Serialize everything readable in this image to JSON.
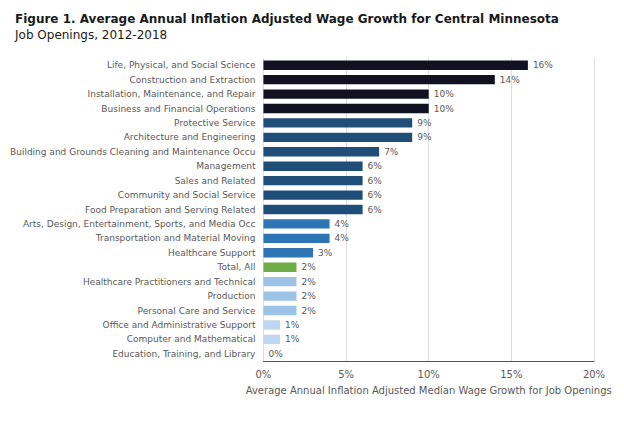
{
  "chart_data": {
    "type": "bar",
    "orientation": "horizontal",
    "title": "Figure 1. Average Annual Inflation Adjusted Wage Growth for Central Minnesota",
    "subtitle": "Job Openings, 2012-2018",
    "categories": [
      "Life, Physical, and Social Science",
      "Construction and Extraction",
      "Installation, Maintenance, and Repair",
      "Business and Financial Operations",
      "Protective Service",
      "Architecture and Engineering",
      "Building and Grounds Cleaning and Maintenance Occu",
      "Management",
      "Sales and Related",
      "Community and Social Service",
      "Food Preparation and Serving Related",
      "Arts, Design, Entertainment, Sports, and Media Occ",
      "Transportation and Material Moving",
      "Healthcare Support",
      "Total, All",
      "Healthcare Practitioners and Technical",
      "Production",
      "Personal Care and Service",
      "Office and Administrative Support",
      "Computer and Mathematical",
      "Education, Training, and Library"
    ],
    "values": [
      16,
      14,
      10,
      10,
      9,
      9,
      7,
      6,
      6,
      6,
      6,
      4,
      4,
      3,
      2,
      2,
      2,
      2,
      1,
      1,
      0
    ],
    "value_labels": [
      "16%",
      "14%",
      "10%",
      "10%",
      "9%",
      "9%",
      "7%",
      "6%",
      "6%",
      "6%",
      "6%",
      "4%",
      "4%",
      "3%",
      "2%",
      "2%",
      "2%",
      "2%",
      "1%",
      "1%",
      "0%"
    ],
    "data_labels": true,
    "colors": [
      "#111122",
      "#111122",
      "#111122",
      "#111122",
      "#1f4e79",
      "#1f4e79",
      "#1f4e79",
      "#1f4e79",
      "#1f4e79",
      "#1f4e79",
      "#1f4e79",
      "#2e75b6",
      "#2e75b6",
      "#2e75b6",
      "#70ad47",
      "#9dc3e6",
      "#9dc3e6",
      "#9dc3e6",
      "#bdd7ee",
      "#bdd7ee",
      "#bdd7ee"
    ],
    "xlabel": "Average Annual Inflation Adjusted Median Wage Growth for Job Openings",
    "xlim": [
      0,
      20
    ],
    "xticks": [
      {
        "value": 0,
        "label": "0%"
      },
      {
        "value": 5,
        "label": "5%"
      },
      {
        "value": 10,
        "label": "10%"
      },
      {
        "value": 15,
        "label": "15%"
      },
      {
        "value": 20,
        "label": "20%"
      }
    ],
    "grid": true
  }
}
